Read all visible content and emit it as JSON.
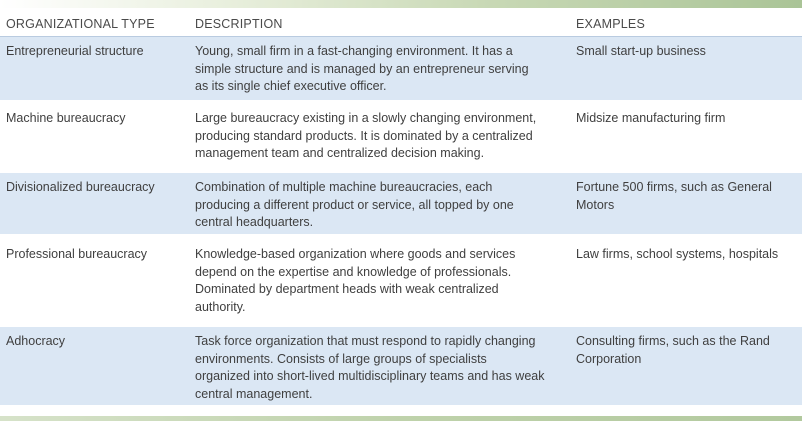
{
  "header": {
    "type": "ORGANIZATIONAL TYPE",
    "description": "DESCRIPTION",
    "examples": "EXAMPLES"
  },
  "rows": [
    {
      "type": "Entrepreneurial structure",
      "description": "Young, small firm in a fast-changing environment. It has a simple structure and is managed by an entrepreneur serving as its single chief executive officer.",
      "examples": "Small start-up business"
    },
    {
      "type": "Machine bureaucracy",
      "description": "Large bureaucracy existing in a slowly changing environment, producing standard products. It is dominated by a centralized management team and centralized decision making.",
      "examples": "Midsize manufacturing firm"
    },
    {
      "type": "Divisionalized bureaucracy",
      "description": "Combination of multiple machine bureaucracies, each producing a different product or service, all topped by one central headquarters.",
      "examples": "Fortune 500 firms, such as General Motors"
    },
    {
      "type": "Professional bureaucracy",
      "description": "Knowledge-based organization where goods and services depend on the expertise and knowledge of professionals. Dominated by department heads with weak centralized authority.",
      "examples": "Law firms, school systems, hospitals"
    },
    {
      "type": "Adhocracy",
      "description": "Task force organization that must respond to rapidly changing environments. Consists of large groups of specialists organized into short-lived multidisciplinary teams and has weak central management.",
      "examples": "Consulting firms, such as the Rand Corporation"
    }
  ]
}
